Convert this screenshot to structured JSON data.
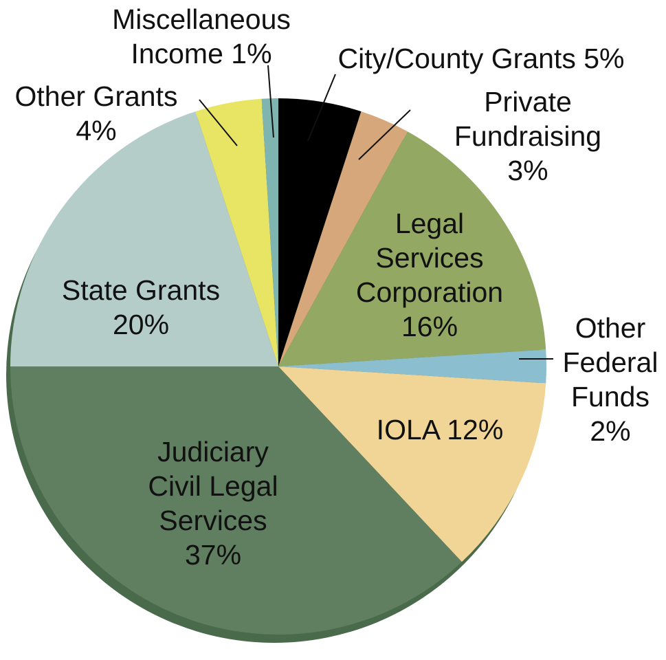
{
  "chart_data": {
    "type": "pie",
    "categories": [
      "City/County Grants",
      "Private Fundraising",
      "Legal Services Corporation",
      "Other Federal Funds",
      "IOLA",
      "Judiciary Civil Legal Services",
      "State Grants",
      "Other Grants",
      "Miscellaneous Income"
    ],
    "values": [
      5,
      3,
      16,
      2,
      12,
      37,
      20,
      4,
      1
    ],
    "value_labels": [
      "5%",
      "3%",
      "16%",
      "2%",
      "12%",
      "37%",
      "20%",
      "4%",
      "1%"
    ],
    "colors": [
      "#000000",
      "#d6a77a",
      "#93a862",
      "#8bbfd0",
      "#f1d597",
      "#5f7f60",
      "#b4cdc9",
      "#e9e564",
      "#7fb5b0"
    ]
  }
}
